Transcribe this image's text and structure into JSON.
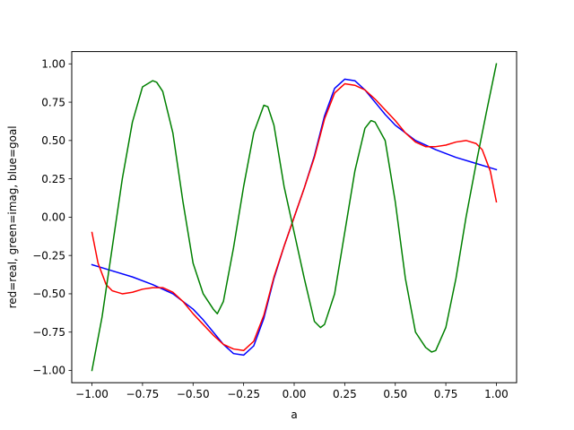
{
  "chart_data": {
    "type": "line",
    "title": "",
    "xlabel": "a",
    "ylabel": "red=real, green=imag, blue=goal",
    "xlim": [
      -1.1,
      1.1
    ],
    "ylim": [
      -1.08,
      1.08
    ],
    "grid": false,
    "legend": "none",
    "x_ticks": [
      -1.0,
      -0.75,
      -0.5,
      -0.25,
      0.0,
      0.25,
      0.5,
      0.75,
      1.0
    ],
    "x_tick_labels": [
      "−1.00",
      "−0.75",
      "−0.50",
      "−0.25",
      "0.00",
      "0.25",
      "0.50",
      "0.75",
      "1.00"
    ],
    "y_ticks": [
      -1.0,
      -0.75,
      -0.5,
      -0.25,
      0.0,
      0.25,
      0.5,
      0.75,
      1.0
    ],
    "y_tick_labels": [
      "−1.00",
      "−0.75",
      "−0.50",
      "−0.25",
      "0.00",
      "0.25",
      "0.50",
      "0.75",
      "1.00"
    ],
    "series": [
      {
        "color": "#0000ff",
        "x": [
          -1.0,
          -0.9,
          -0.8,
          -0.7,
          -0.6,
          -0.5,
          -0.45,
          -0.4,
          -0.35,
          -0.3,
          -0.25,
          -0.2,
          -0.15,
          -0.1,
          -0.05,
          0.0,
          0.05,
          0.1,
          0.15,
          0.2,
          0.25,
          0.3,
          0.35,
          0.4,
          0.45,
          0.5,
          0.6,
          0.7,
          0.8,
          0.9,
          1.0
        ],
        "y": [
          -0.31,
          -0.35,
          -0.39,
          -0.44,
          -0.5,
          -0.6,
          -0.67,
          -0.75,
          -0.83,
          -0.89,
          -0.9,
          -0.84,
          -0.66,
          -0.4,
          -0.19,
          0.0,
          0.19,
          0.4,
          0.66,
          0.84,
          0.9,
          0.89,
          0.83,
          0.75,
          0.67,
          0.6,
          0.5,
          0.44,
          0.39,
          0.35,
          0.31
        ]
      },
      {
        "color": "#ff0000",
        "x": [
          -1.0,
          -0.97,
          -0.93,
          -0.9,
          -0.85,
          -0.8,
          -0.75,
          -0.7,
          -0.65,
          -0.6,
          -0.55,
          -0.5,
          -0.45,
          -0.4,
          -0.35,
          -0.3,
          -0.25,
          -0.2,
          -0.15,
          -0.1,
          -0.05,
          0.0,
          0.05,
          0.1,
          0.15,
          0.2,
          0.25,
          0.3,
          0.35,
          0.4,
          0.45,
          0.5,
          0.55,
          0.6,
          0.65,
          0.7,
          0.75,
          0.8,
          0.85,
          0.9,
          0.93,
          0.97,
          1.0
        ],
        "y": [
          -0.1,
          -0.3,
          -0.44,
          -0.48,
          -0.5,
          -0.49,
          -0.47,
          -0.46,
          -0.46,
          -0.49,
          -0.55,
          -0.63,
          -0.7,
          -0.77,
          -0.83,
          -0.86,
          -0.87,
          -0.81,
          -0.64,
          -0.39,
          -0.19,
          0.0,
          0.19,
          0.39,
          0.64,
          0.81,
          0.87,
          0.86,
          0.83,
          0.77,
          0.7,
          0.63,
          0.55,
          0.49,
          0.46,
          0.46,
          0.47,
          0.49,
          0.5,
          0.48,
          0.44,
          0.3,
          0.1
        ]
      },
      {
        "color": "#008000",
        "x": [
          -1.0,
          -0.95,
          -0.9,
          -0.85,
          -0.8,
          -0.75,
          -0.7,
          -0.68,
          -0.65,
          -0.6,
          -0.55,
          -0.5,
          -0.45,
          -0.4,
          -0.38,
          -0.35,
          -0.3,
          -0.25,
          -0.2,
          -0.15,
          -0.13,
          -0.1,
          -0.05,
          0.0,
          0.05,
          0.1,
          0.13,
          0.15,
          0.2,
          0.25,
          0.3,
          0.35,
          0.38,
          0.4,
          0.45,
          0.5,
          0.55,
          0.6,
          0.65,
          0.68,
          0.7,
          0.75,
          0.8,
          0.85,
          0.9,
          0.95,
          1.0
        ],
        "y": [
          -1.0,
          -0.65,
          -0.2,
          0.25,
          0.62,
          0.85,
          0.89,
          0.88,
          0.82,
          0.55,
          0.1,
          -0.3,
          -0.5,
          -0.6,
          -0.63,
          -0.55,
          -0.2,
          0.2,
          0.55,
          0.73,
          0.72,
          0.6,
          0.2,
          -0.1,
          -0.4,
          -0.68,
          -0.72,
          -0.7,
          -0.5,
          -0.1,
          0.3,
          0.58,
          0.63,
          0.62,
          0.5,
          0.1,
          -0.4,
          -0.75,
          -0.85,
          -0.88,
          -0.87,
          -0.72,
          -0.4,
          0.0,
          0.35,
          0.68,
          1.0
        ]
      }
    ]
  }
}
